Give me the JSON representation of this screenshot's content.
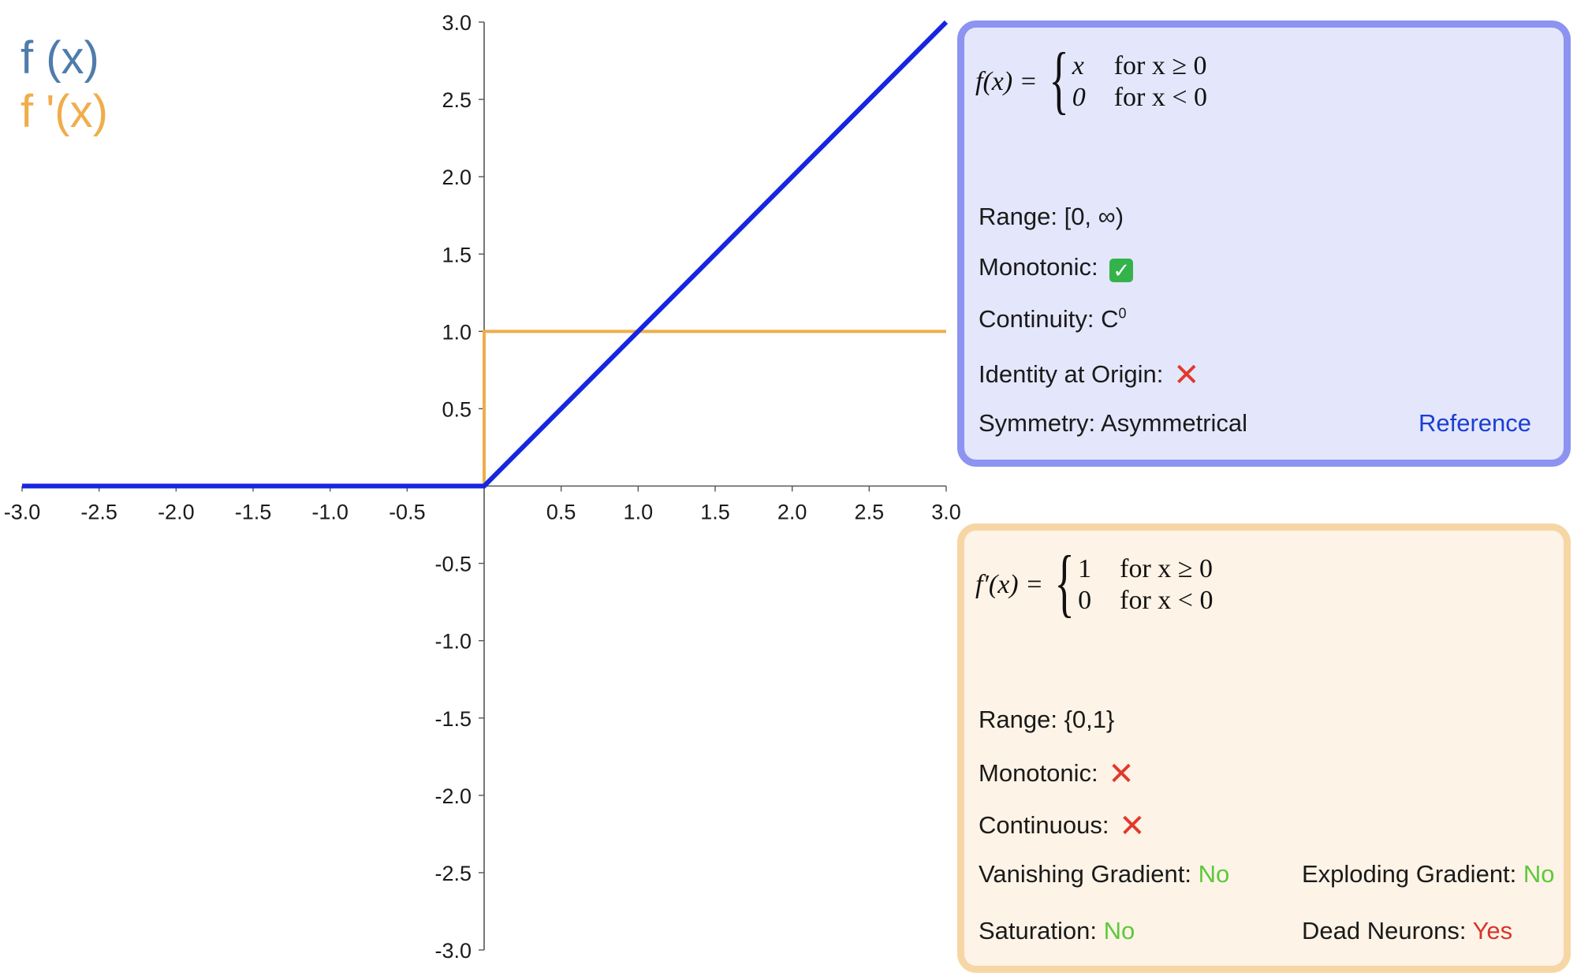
{
  "legend": {
    "f": {
      "label": "f (x)",
      "color": "#4f7cab"
    },
    "df": {
      "label": "f '(x)",
      "color": "#f0ad4a"
    }
  },
  "chart_data": {
    "type": "line",
    "title": "",
    "xlabel": "",
    "ylabel": "",
    "xlim": [
      -3,
      3
    ],
    "ylim": [
      -3,
      3
    ],
    "grid": false,
    "x_ticks": [
      "-3.0",
      "-2.5",
      "-2.0",
      "-1.5",
      "-1.0",
      "-0.5",
      "0.5",
      "1.0",
      "1.5",
      "2.0",
      "2.5",
      "3.0"
    ],
    "y_ticks": [
      "3.0",
      "2.5",
      "2.0",
      "1.5",
      "1.0",
      "0.5",
      "-0.5",
      "-1.0",
      "-1.5",
      "-2.0",
      "-2.5",
      "-3.0"
    ],
    "series": [
      {
        "name": "f (x)",
        "color": "#1626e0",
        "points": [
          [
            -3,
            0
          ],
          [
            0,
            0
          ],
          [
            3,
            3
          ]
        ]
      },
      {
        "name": "f '(x)",
        "color": "#f0ad4a",
        "points": [
          [
            -3,
            0
          ],
          [
            0,
            0
          ],
          [
            0,
            1
          ],
          [
            3,
            1
          ]
        ]
      }
    ]
  },
  "panel_f": {
    "formula": {
      "lhs": "f(x) =",
      "case1_value": "x",
      "case1_cond": "for x ≥ 0",
      "case2_value": "0",
      "case2_cond": "for x < 0"
    },
    "range": "Range: [0, ∞)",
    "monotonic": "Monotonic:",
    "continuity": "Continuity: C",
    "continuity_sup": "0",
    "identity": "Identity at Origin:",
    "symmetry": "Symmetry: Asymmetrical",
    "reference": "Reference"
  },
  "panel_df": {
    "formula": {
      "lhs": "f′(x) =",
      "case1_value": "1",
      "case1_cond": "for x ≥ 0",
      "case2_value": "0",
      "case2_cond": "for x < 0"
    },
    "range": "Range: {0,1}",
    "monotonic": "Monotonic:",
    "continuous": "Continuous:",
    "vanishing_label": "Vanishing Gradient:",
    "vanishing_value": "No",
    "exploding_label": "Exploding Gradient:",
    "exploding_value": "No",
    "saturation_label": "Saturation:",
    "saturation_value": "No",
    "dead_label": "Dead Neurons:",
    "dead_value": "Yes",
    "yes_color": "#d9342b",
    "no_color": "#5cc93b"
  }
}
